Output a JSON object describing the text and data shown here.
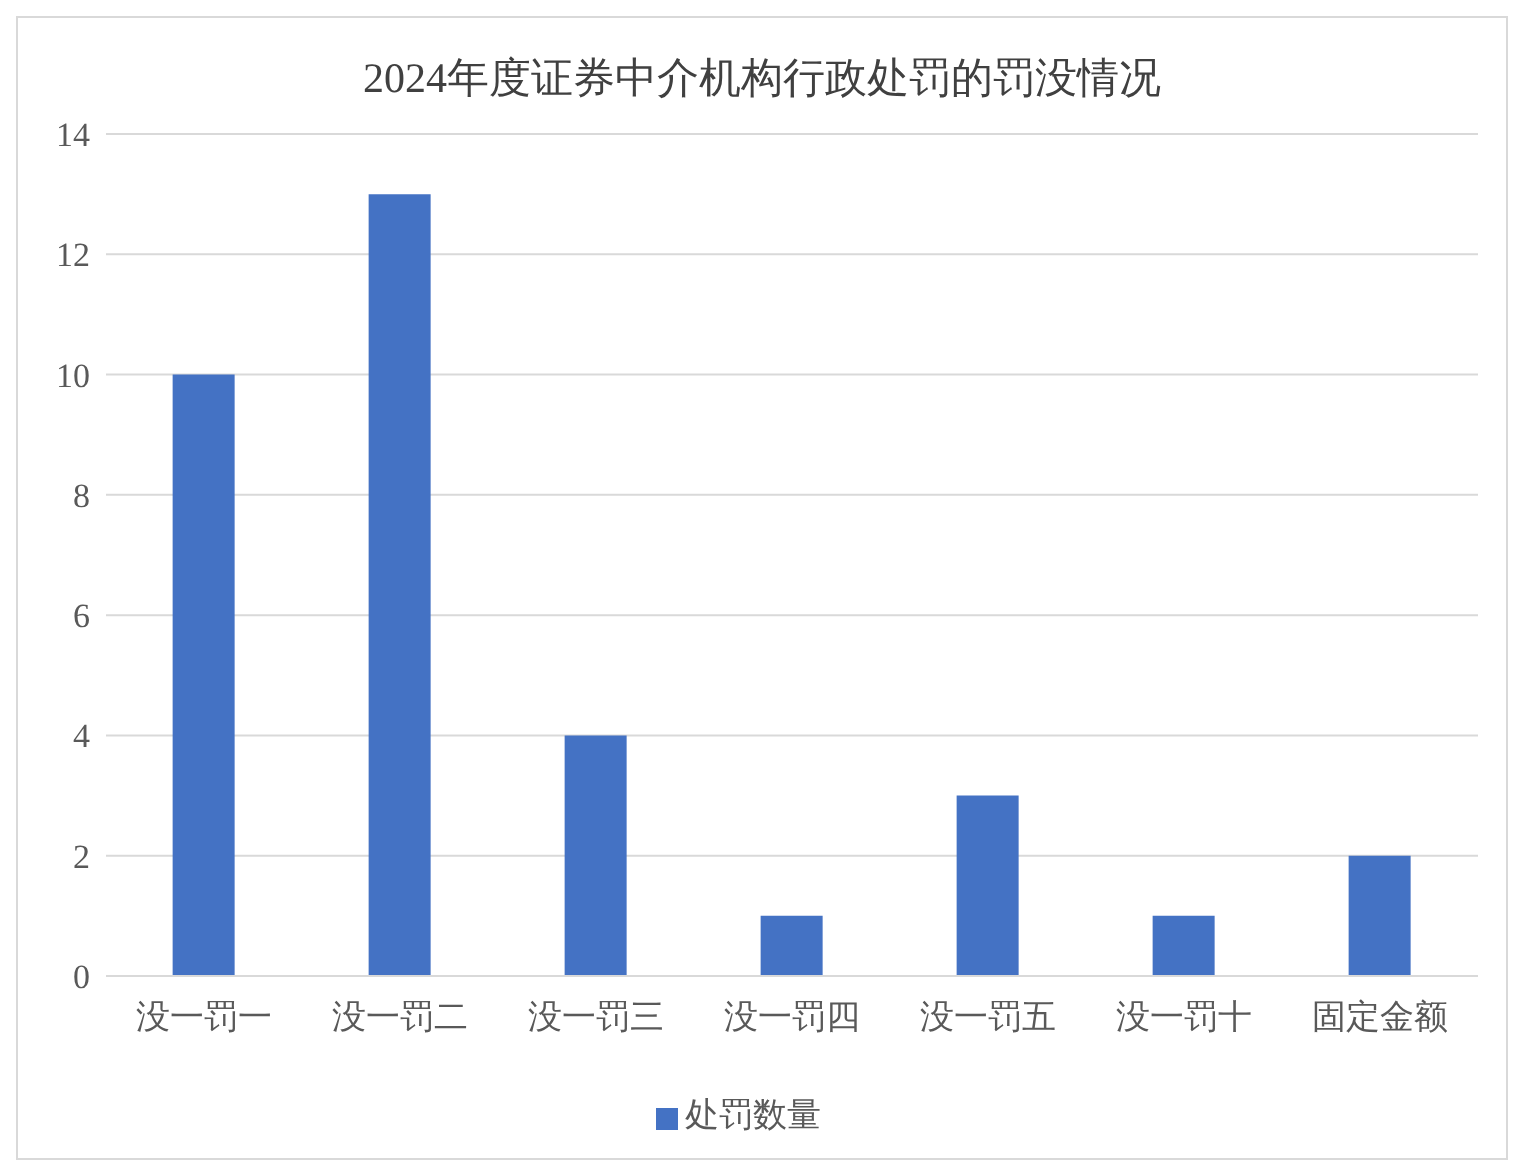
{
  "chart_data": {
    "type": "bar",
    "title": "2024年度证券中介机构行政处罚的罚没情况",
    "categories": [
      "没一罚一",
      "没一罚二",
      "没一罚三",
      "没一罚四",
      "没一罚五",
      "没一罚十",
      "固定金额"
    ],
    "series": [
      {
        "name": "处罚数量",
        "color": "#4472c4",
        "values": [
          10,
          13,
          4,
          1,
          3,
          1,
          2
        ]
      }
    ],
    "ylim": [
      0,
      14
    ],
    "yticks": [
      0,
      2,
      4,
      6,
      8,
      10,
      12,
      14
    ],
    "grid": "y",
    "legend": "bottom"
  }
}
